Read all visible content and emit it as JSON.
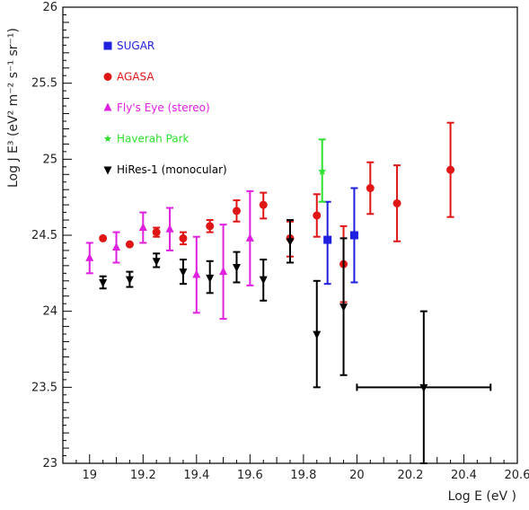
{
  "chart_data": {
    "type": "scatter",
    "xlabel": "Log E  (eV )",
    "ylabel": "Log J E³ (eV² m⁻² s⁻¹ sr⁻¹)",
    "xlim": [
      18.9,
      20.6
    ],
    "ylim": [
      23,
      26
    ],
    "x_ticks": [
      "19",
      "19.2",
      "19.4",
      "19.6",
      "19.8",
      "20",
      "20.2",
      "20.4",
      "20.6"
    ],
    "y_ticks": [
      "23",
      "23.5",
      "24",
      "24.5",
      "25",
      "25.5",
      "26"
    ],
    "grid": false,
    "legend_position": "top-left",
    "series": [
      {
        "name": "SUGAR",
        "color": "#1f1fe0",
        "marker": "square",
        "points": [
          {
            "x": 19.89,
            "y": 24.47,
            "ylo": 24.18,
            "yhi": 24.72
          },
          {
            "x": 19.99,
            "y": 24.5,
            "ylo": 24.19,
            "yhi": 24.81
          }
        ]
      },
      {
        "name": "AGASA",
        "color": "#e01515",
        "marker": "circle",
        "points": [
          {
            "x": 19.05,
            "y": 24.48
          },
          {
            "x": 19.15,
            "y": 24.44
          },
          {
            "x": 19.25,
            "y": 24.52,
            "ylo": 24.49,
            "yhi": 24.55
          },
          {
            "x": 19.35,
            "y": 24.48,
            "ylo": 24.44,
            "yhi": 24.52
          },
          {
            "x": 19.45,
            "y": 24.56,
            "ylo": 24.52,
            "yhi": 24.6
          },
          {
            "x": 19.55,
            "y": 24.66,
            "ylo": 24.59,
            "yhi": 24.73
          },
          {
            "x": 19.65,
            "y": 24.7,
            "ylo": 24.61,
            "yhi": 24.78
          },
          {
            "x": 19.75,
            "y": 24.48,
            "ylo": 24.36,
            "yhi": 24.59
          },
          {
            "x": 19.85,
            "y": 24.63,
            "ylo": 24.49,
            "yhi": 24.77
          },
          {
            "x": 19.95,
            "y": 24.31,
            "ylo": 24.06,
            "yhi": 24.56
          },
          {
            "x": 20.05,
            "y": 24.81,
            "ylo": 24.64,
            "yhi": 24.98
          },
          {
            "x": 20.15,
            "y": 24.71,
            "ylo": 24.46,
            "yhi": 24.96
          },
          {
            "x": 20.35,
            "y": 24.93,
            "ylo": 24.62,
            "yhi": 25.24
          }
        ]
      },
      {
        "name": "Fly's Eye (stereo)",
        "color": "#e020e0",
        "marker": "triangle-up",
        "points": [
          {
            "x": 19.0,
            "y": 24.35,
            "ylo": 24.25,
            "yhi": 24.45
          },
          {
            "x": 19.1,
            "y": 24.42,
            "ylo": 24.32,
            "yhi": 24.52
          },
          {
            "x": 19.2,
            "y": 24.55,
            "ylo": 24.45,
            "yhi": 24.65
          },
          {
            "x": 19.3,
            "y": 24.54,
            "ylo": 24.4,
            "yhi": 24.68
          },
          {
            "x": 19.4,
            "y": 24.24,
            "ylo": 23.99,
            "yhi": 24.49
          },
          {
            "x": 19.5,
            "y": 24.26,
            "ylo": 23.95,
            "yhi": 24.57
          },
          {
            "x": 19.6,
            "y": 24.48,
            "ylo": 24.17,
            "yhi": 24.79
          }
        ]
      },
      {
        "name": "Haverah Park",
        "color": "#2fe02f",
        "marker": "star",
        "points": [
          {
            "x": 19.87,
            "y": 24.92,
            "ylo": 24.72,
            "yhi": 25.13
          }
        ]
      },
      {
        "name": "HiRes-1 (monocular)",
        "color": "#000000",
        "marker": "triangle-down",
        "points": [
          {
            "x": 19.05,
            "y": 24.19,
            "ylo": 24.15,
            "yhi": 24.23
          },
          {
            "x": 19.15,
            "y": 24.21,
            "ylo": 24.16,
            "yhi": 24.26
          },
          {
            "x": 19.25,
            "y": 24.33,
            "ylo": 24.29,
            "yhi": 24.38
          },
          {
            "x": 19.35,
            "y": 24.26,
            "ylo": 24.18,
            "yhi": 24.34
          },
          {
            "x": 19.45,
            "y": 24.22,
            "ylo": 24.12,
            "yhi": 24.33
          },
          {
            "x": 19.55,
            "y": 24.29,
            "ylo": 24.19,
            "yhi": 24.39
          },
          {
            "x": 19.65,
            "y": 24.21,
            "ylo": 24.07,
            "yhi": 24.34
          },
          {
            "x": 19.75,
            "y": 24.46,
            "ylo": 24.32,
            "yhi": 24.6
          },
          {
            "x": 19.85,
            "y": 23.85,
            "ylo": 23.5,
            "yhi": 24.2
          },
          {
            "x": 19.95,
            "y": 24.03,
            "ylo": 23.58,
            "yhi": 24.48
          },
          {
            "x": 20.25,
            "y": 23.5,
            "ylo": 23.0,
            "yhi": 24.0,
            "xlo": 20.0,
            "xhi": 20.5
          }
        ]
      }
    ]
  }
}
